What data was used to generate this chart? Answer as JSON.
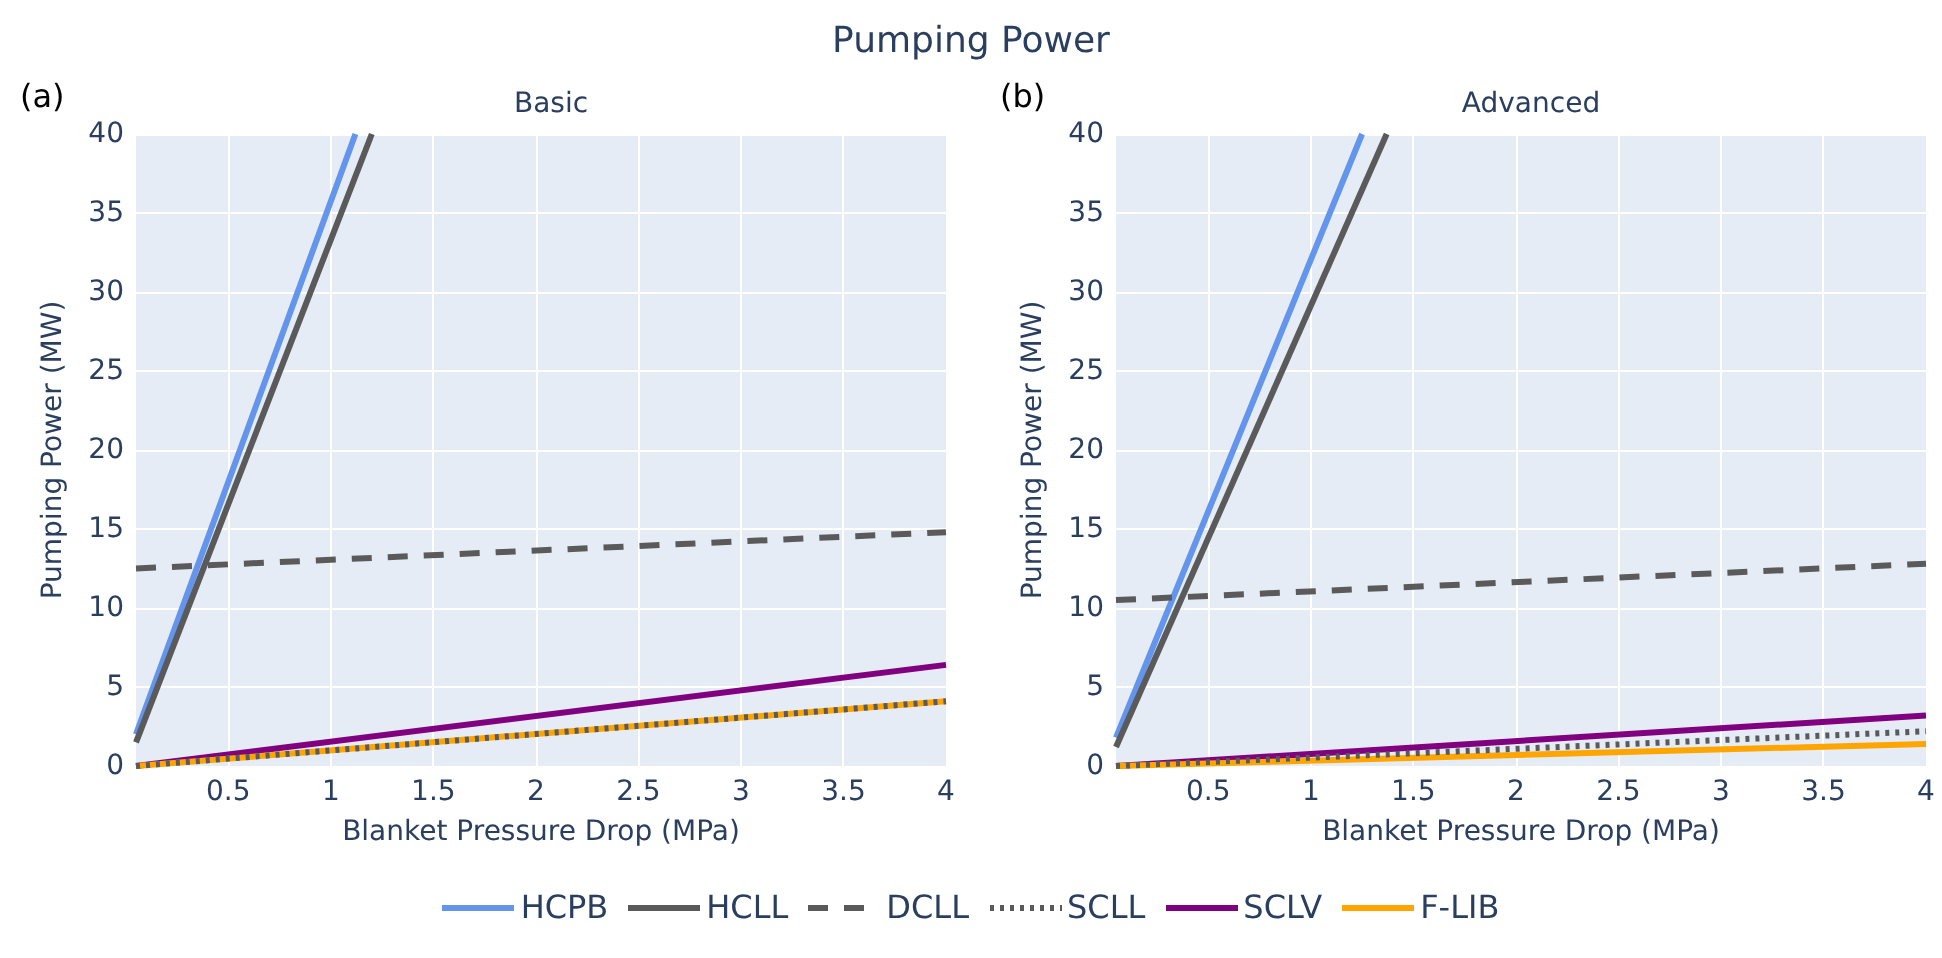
{
  "chart_data": [
    {
      "type": "line",
      "title": "Basic",
      "annotations": [
        "Pumping Power",
        "(a)"
      ],
      "xlabel": "Blanket Pressure Drop (MPa)",
      "ylabel": "Pumping Power (MW)",
      "xlim": [
        0.05,
        4
      ],
      "ylim": [
        0,
        40
      ],
      "xticks": [
        0.5,
        1,
        1.5,
        2,
        2.5,
        3,
        3.5,
        4
      ],
      "yticks": [
        0,
        5,
        10,
        15,
        20,
        25,
        30,
        35,
        40
      ],
      "grid": true,
      "legend": "bottom",
      "marker": "none",
      "series": [
        {
          "name": "HCPB",
          "color": "#6495ed",
          "line_style": "solid",
          "x": [
            0.05,
            1.12
          ],
          "values": [
            2,
            40
          ]
        },
        {
          "name": "HCLL",
          "color": "#5a5a5a",
          "line_style": "solid",
          "x": [
            0.05,
            1.2
          ],
          "values": [
            1.5,
            40
          ]
        },
        {
          "name": "DCLL",
          "color": "#5a5a5a",
          "line_style": "dashed",
          "x": [
            0.05,
            4
          ],
          "values": [
            12.5,
            14.8
          ]
        },
        {
          "name": "SCLL",
          "color": "#5a5a5a",
          "line_style": "dotted",
          "x": [
            0.05,
            4
          ],
          "values": [
            0,
            4.1
          ]
        },
        {
          "name": "SCLV",
          "color": "#800080",
          "line_style": "solid",
          "x": [
            0.05,
            4
          ],
          "values": [
            0,
            6.4
          ]
        },
        {
          "name": "F-LIB",
          "color": "#ffa500",
          "line_style": "solid",
          "x": [
            0.05,
            4
          ],
          "values": [
            0,
            4.1
          ]
        }
      ]
    },
    {
      "type": "line",
      "title": "Advanced",
      "annotations": [
        "(b)"
      ],
      "xlabel": "Blanket Pressure Drop (MPa)",
      "ylabel": "Pumping Power (MW)",
      "xlim": [
        0.05,
        4
      ],
      "ylim": [
        0,
        40
      ],
      "xticks": [
        0.5,
        1,
        1.5,
        2,
        2.5,
        3,
        3.5,
        4
      ],
      "yticks": [
        0,
        5,
        10,
        15,
        20,
        25,
        30,
        35,
        40
      ],
      "grid": true,
      "legend": "bottom",
      "marker": "none",
      "series": [
        {
          "name": "HCPB",
          "color": "#6495ed",
          "line_style": "solid",
          "x": [
            0.05,
            1.25
          ],
          "values": [
            1.8,
            40
          ]
        },
        {
          "name": "HCLL",
          "color": "#5a5a5a",
          "line_style": "solid",
          "x": [
            0.05,
            1.37
          ],
          "values": [
            1.2,
            40
          ]
        },
        {
          "name": "DCLL",
          "color": "#5a5a5a",
          "line_style": "dashed",
          "x": [
            0.05,
            4
          ],
          "values": [
            10.5,
            12.8
          ]
        },
        {
          "name": "SCLL",
          "color": "#5a5a5a",
          "line_style": "dotted",
          "x": [
            0.05,
            4
          ],
          "values": [
            0,
            2.2
          ]
        },
        {
          "name": "SCLV",
          "color": "#800080",
          "line_style": "solid",
          "x": [
            0.05,
            4
          ],
          "values": [
            0,
            3.2
          ]
        },
        {
          "name": "F-LIB",
          "color": "#ffa500",
          "line_style": "solid",
          "x": [
            0.05,
            4
          ],
          "values": [
            0,
            1.4
          ]
        }
      ]
    }
  ]
}
